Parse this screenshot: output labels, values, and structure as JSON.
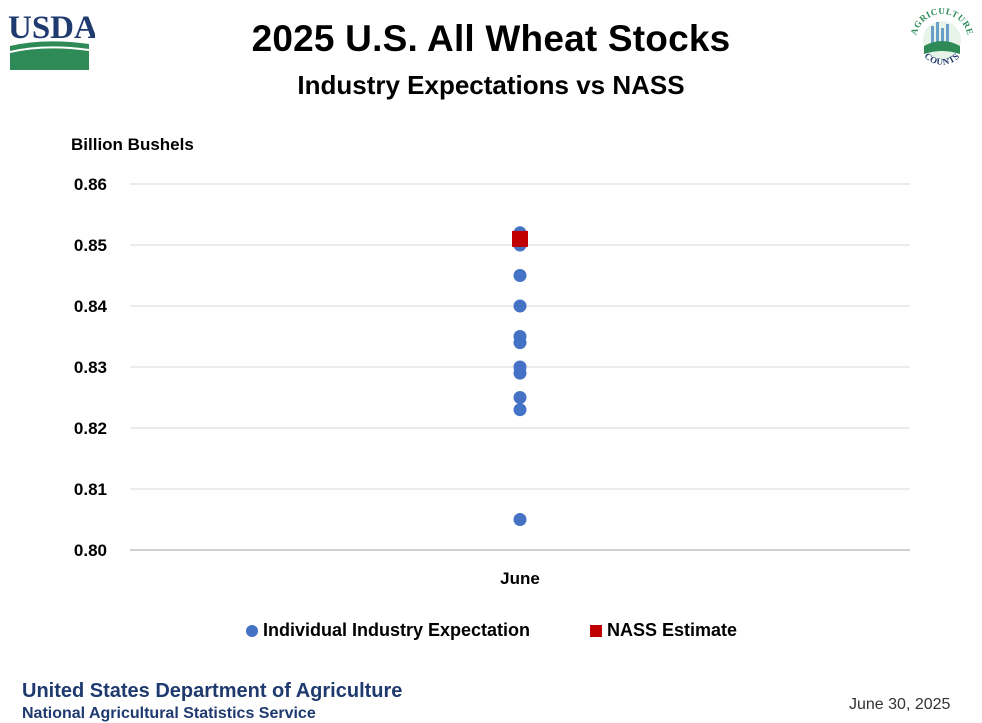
{
  "header": {
    "usda_logo_text": "USDA",
    "ag_logo_text_top": "AGRICULTURE",
    "ag_logo_text_bottom": "COUNTS",
    "title": "2025 U.S. All Wheat Stocks",
    "subtitle": "Industry Expectations vs NASS"
  },
  "colors": {
    "expectation": "#4472c4",
    "nass": "#c00000",
    "usda_blue": "#1f3a6e",
    "usda_green": "#2e8b57",
    "grid": "#d9d9d9",
    "axis": "#bfbfbf"
  },
  "chart_data": {
    "type": "scatter",
    "title": "2025 U.S. All Wheat Stocks",
    "subtitle": "Industry Expectations vs NASS",
    "ylabel": "Billion Bushels",
    "xlabel": "",
    "categories": [
      "June"
    ],
    "ylim": [
      0.8,
      0.86
    ],
    "yticks": [
      0.8,
      0.81,
      0.82,
      0.83,
      0.84,
      0.85,
      0.86
    ],
    "ytick_labels": [
      "0.80",
      "0.81",
      "0.82",
      "0.83",
      "0.84",
      "0.85",
      "0.86"
    ],
    "grid": true,
    "legend_position": "bottom",
    "series": [
      {
        "name": "Individual Industry Expectation",
        "marker": "circle",
        "category": "June",
        "values": [
          0.852,
          0.851,
          0.85,
          0.845,
          0.84,
          0.835,
          0.834,
          0.83,
          0.829,
          0.825,
          0.823,
          0.805
        ]
      },
      {
        "name": "NASS Estimate",
        "marker": "square",
        "category": "June",
        "values": [
          0.851
        ]
      }
    ]
  },
  "legend": {
    "expectation_label": "Individual Industry Expectation",
    "nass_label": "NASS Estimate"
  },
  "footer": {
    "org": "United States Department of Agriculture",
    "agency": "National Agricultural Statistics Service",
    "date": "June 30, 2025"
  }
}
